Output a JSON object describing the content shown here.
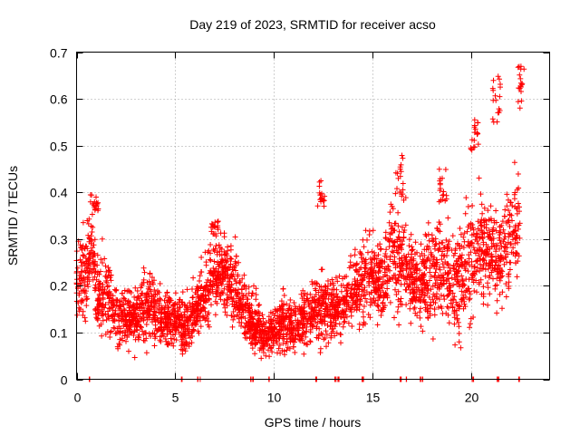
{
  "chart_data": {
    "type": "scatter",
    "title": "Day 219 of 2023, SRMTID for receiver acso",
    "xlabel": "GPS time / hours",
    "ylabel": "SRMTID / TECUs",
    "xlim": [
      0,
      24
    ],
    "ylim": [
      0,
      0.7
    ],
    "xticks": [
      0,
      5,
      10,
      15,
      20
    ],
    "xtick_labels": [
      "0",
      "5",
      "10",
      "15",
      "20"
    ],
    "yticks": [
      0,
      0.1,
      0.2,
      0.3,
      0.4,
      0.5,
      0.6,
      0.7
    ],
    "ytick_labels": [
      "0",
      "0.1",
      "0.2",
      "0.3",
      "0.4",
      "0.5",
      "0.6",
      "0.7"
    ],
    "grid": true,
    "marker": "+",
    "marker_color": "#ff0000",
    "series": [
      {
        "name": "SRMTID",
        "envelope": {
          "x": [
            0.0,
            0.5,
            0.8,
            1.0,
            1.5,
            2.0,
            2.5,
            3.0,
            3.5,
            4.0,
            4.5,
            5.0,
            5.5,
            6.0,
            6.5,
            7.0,
            7.5,
            8.0,
            8.5,
            9.0,
            9.5,
            10.0,
            10.5,
            11.0,
            11.5,
            12.0,
            12.5,
            13.0,
            13.5,
            14.0,
            14.5,
            15.0,
            15.5,
            16.0,
            16.5,
            17.0,
            17.5,
            18.0,
            18.5,
            19.0,
            19.5,
            20.0,
            20.5,
            21.0,
            21.5,
            22.0,
            22.5
          ],
          "center": [
            0.23,
            0.22,
            0.3,
            0.17,
            0.19,
            0.14,
            0.13,
            0.13,
            0.16,
            0.14,
            0.12,
            0.13,
            0.11,
            0.15,
            0.18,
            0.22,
            0.23,
            0.2,
            0.15,
            0.12,
            0.09,
            0.11,
            0.12,
            0.11,
            0.13,
            0.14,
            0.16,
            0.15,
            0.16,
            0.19,
            0.21,
            0.23,
            0.2,
            0.28,
            0.25,
            0.22,
            0.2,
            0.23,
            0.24,
            0.21,
            0.2,
            0.26,
            0.27,
            0.28,
            0.26,
            0.3,
            0.33
          ],
          "spread": [
            0.06,
            0.06,
            0.05,
            0.06,
            0.05,
            0.04,
            0.04,
            0.04,
            0.05,
            0.04,
            0.04,
            0.04,
            0.04,
            0.04,
            0.05,
            0.05,
            0.05,
            0.05,
            0.04,
            0.04,
            0.03,
            0.03,
            0.04,
            0.03,
            0.04,
            0.04,
            0.05,
            0.04,
            0.04,
            0.05,
            0.06,
            0.06,
            0.05,
            0.08,
            0.07,
            0.06,
            0.06,
            0.07,
            0.07,
            0.07,
            0.07,
            0.08,
            0.08,
            0.07,
            0.07,
            0.08,
            0.1
          ]
        },
        "points_per_hour": 150,
        "spikes": [
          {
            "x": 0.9,
            "y": [
              0.36,
              0.4
            ]
          },
          {
            "x": 7.0,
            "y": [
              0.3,
              0.34
            ]
          },
          {
            "x": 12.4,
            "y": [
              0.36,
              0.43
            ]
          },
          {
            "x": 16.4,
            "y": [
              0.38,
              0.48
            ]
          },
          {
            "x": 18.6,
            "y": [
              0.38,
              0.45
            ]
          },
          {
            "x": 20.2,
            "y": [
              0.49,
              0.56
            ]
          },
          {
            "x": 21.3,
            "y": [
              0.55,
              0.65
            ]
          },
          {
            "x": 22.6,
            "y": [
              0.58,
              0.67
            ]
          }
        ],
        "zero_markers_x": [
          0.6,
          5.3,
          6.2,
          8.9,
          9.7,
          12.2,
          13.1,
          13.3,
          14.5,
          16.4,
          16.8,
          17.5,
          20.1,
          21.4,
          22.5
        ]
      }
    ]
  }
}
